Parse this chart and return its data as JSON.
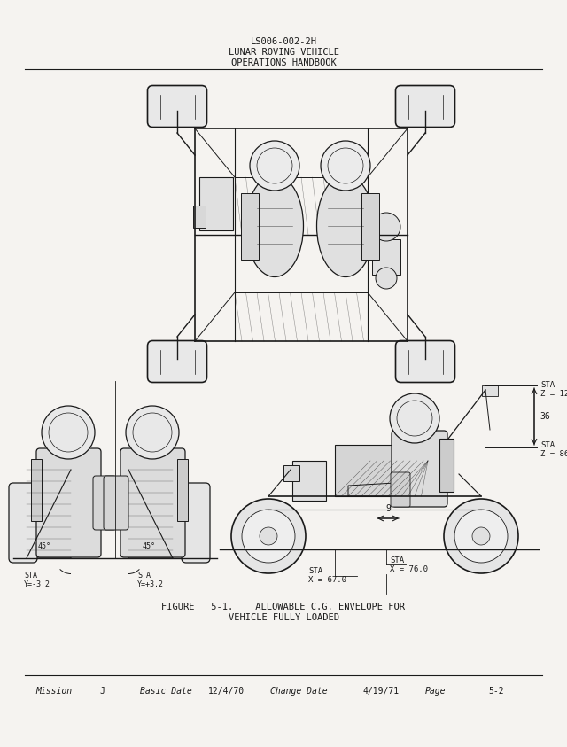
{
  "bg_color": "#f5f3f0",
  "page_color": "#f5f3f0",
  "tc": "#1a1a1a",
  "header_line1": "LS006-002-2H",
  "header_line2": "LUNAR ROVING VEHICLE",
  "header_line3": "OPERATIONS HANDBOOK",
  "fig_cap1": "FIGURE   5-1.    ALLOWABLE C.G. ENVELOPE FOR",
  "fig_cap2": "VEHICLE FULLY LOADED",
  "footer_mission_label": "Mission",
  "footer_mission_val": "J",
  "footer_basic_label": "Basic Date",
  "footer_basic_val": "12/4/70",
  "footer_change_label": "Change Date",
  "footer_change_val": "4/19/71",
  "footer_page_label": "Page",
  "footer_page_val": "5-2"
}
